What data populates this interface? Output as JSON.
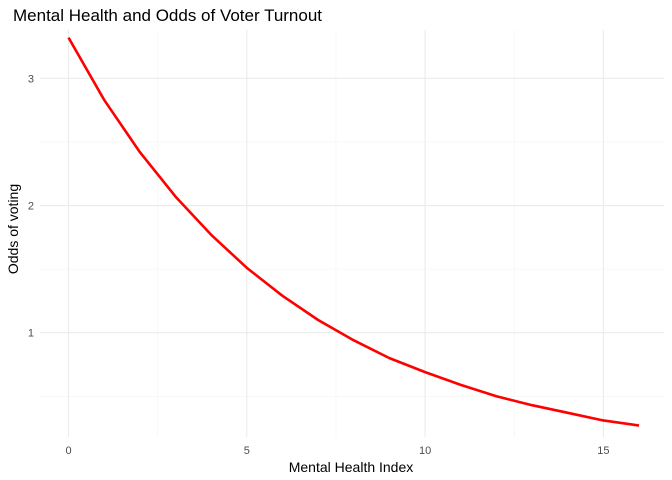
{
  "chart_data": {
    "type": "line",
    "title": "Mental Health and Odds of Voter Turnout",
    "xlabel": "Mental Health Index",
    "ylabel": "Odds of voting",
    "xlim": [
      -0.8,
      16.7
    ],
    "ylim": [
      0.18,
      3.38
    ],
    "x_ticks": [
      0,
      5,
      10,
      15
    ],
    "x_tick_labels": [
      "0",
      "5",
      "10",
      "15"
    ],
    "x_minor": [
      2.5,
      7.5,
      12.5
    ],
    "y_ticks": [
      1,
      2,
      3
    ],
    "y_tick_labels": [
      "1",
      "2",
      "3"
    ],
    "y_minor": [
      0.5,
      1.5,
      2.5
    ],
    "grid": true,
    "line_color": "#ff0000",
    "series": [
      {
        "x": [
          0,
          1,
          2,
          3,
          4,
          5,
          6,
          7,
          8,
          9,
          10,
          11,
          12,
          13,
          14,
          15,
          16
        ],
        "values": [
          3.32,
          2.83,
          2.42,
          2.07,
          1.77,
          1.51,
          1.29,
          1.1,
          0.94,
          0.8,
          0.69,
          0.59,
          0.5,
          0.43,
          0.37,
          0.31,
          0.27
        ]
      }
    ]
  }
}
